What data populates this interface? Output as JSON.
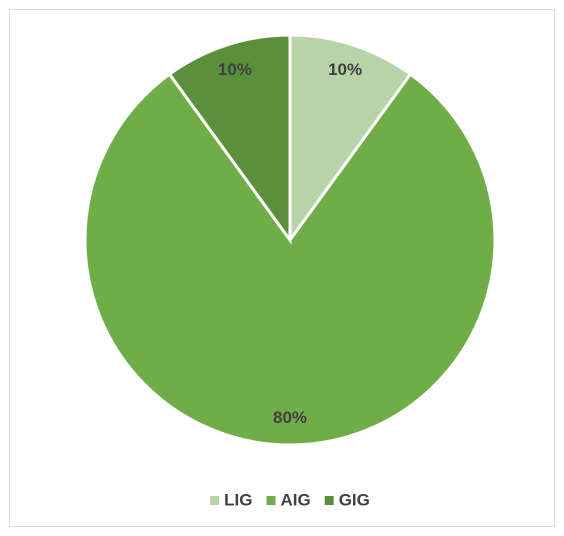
{
  "chart_data": {
    "type": "pie",
    "categories": [
      "LIG",
      "AIG",
      "GIG"
    ],
    "values": [
      10,
      80,
      10
    ],
    "value_labels": [
      "10%",
      "80%",
      "10%"
    ],
    "colors": [
      "#b6d4a8",
      "#70ad47",
      "#5a8f3c"
    ],
    "legend": "bottom"
  }
}
